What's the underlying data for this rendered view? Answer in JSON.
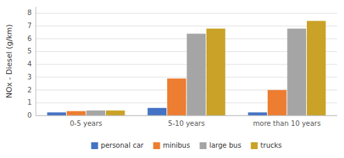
{
  "chart_data": {
    "type": "bar",
    "categories": [
      "0-5 years",
      "5-10 years",
      "more than 10 years"
    ],
    "series": [
      {
        "name": "personal car",
        "color": "#4472C4",
        "values": [
          0.25,
          0.6,
          0.25
        ]
      },
      {
        "name": "minibus",
        "color": "#ED7D31",
        "values": [
          0.35,
          2.9,
          2.0
        ]
      },
      {
        "name": "large bus",
        "color": "#A5A5A5",
        "values": [
          0.4,
          6.4,
          6.8
        ]
      },
      {
        "name": "trucks",
        "color": "#C9A227",
        "values": [
          0.4,
          6.8,
          7.4
        ]
      }
    ],
    "y_label": "NOx - Diesel (g/km)",
    "ylim": [
      0,
      8.5
    ],
    "yticks": [
      0,
      1,
      2,
      3,
      4,
      5,
      6,
      7,
      8
    ],
    "grid": true,
    "legend": "bottom"
  }
}
